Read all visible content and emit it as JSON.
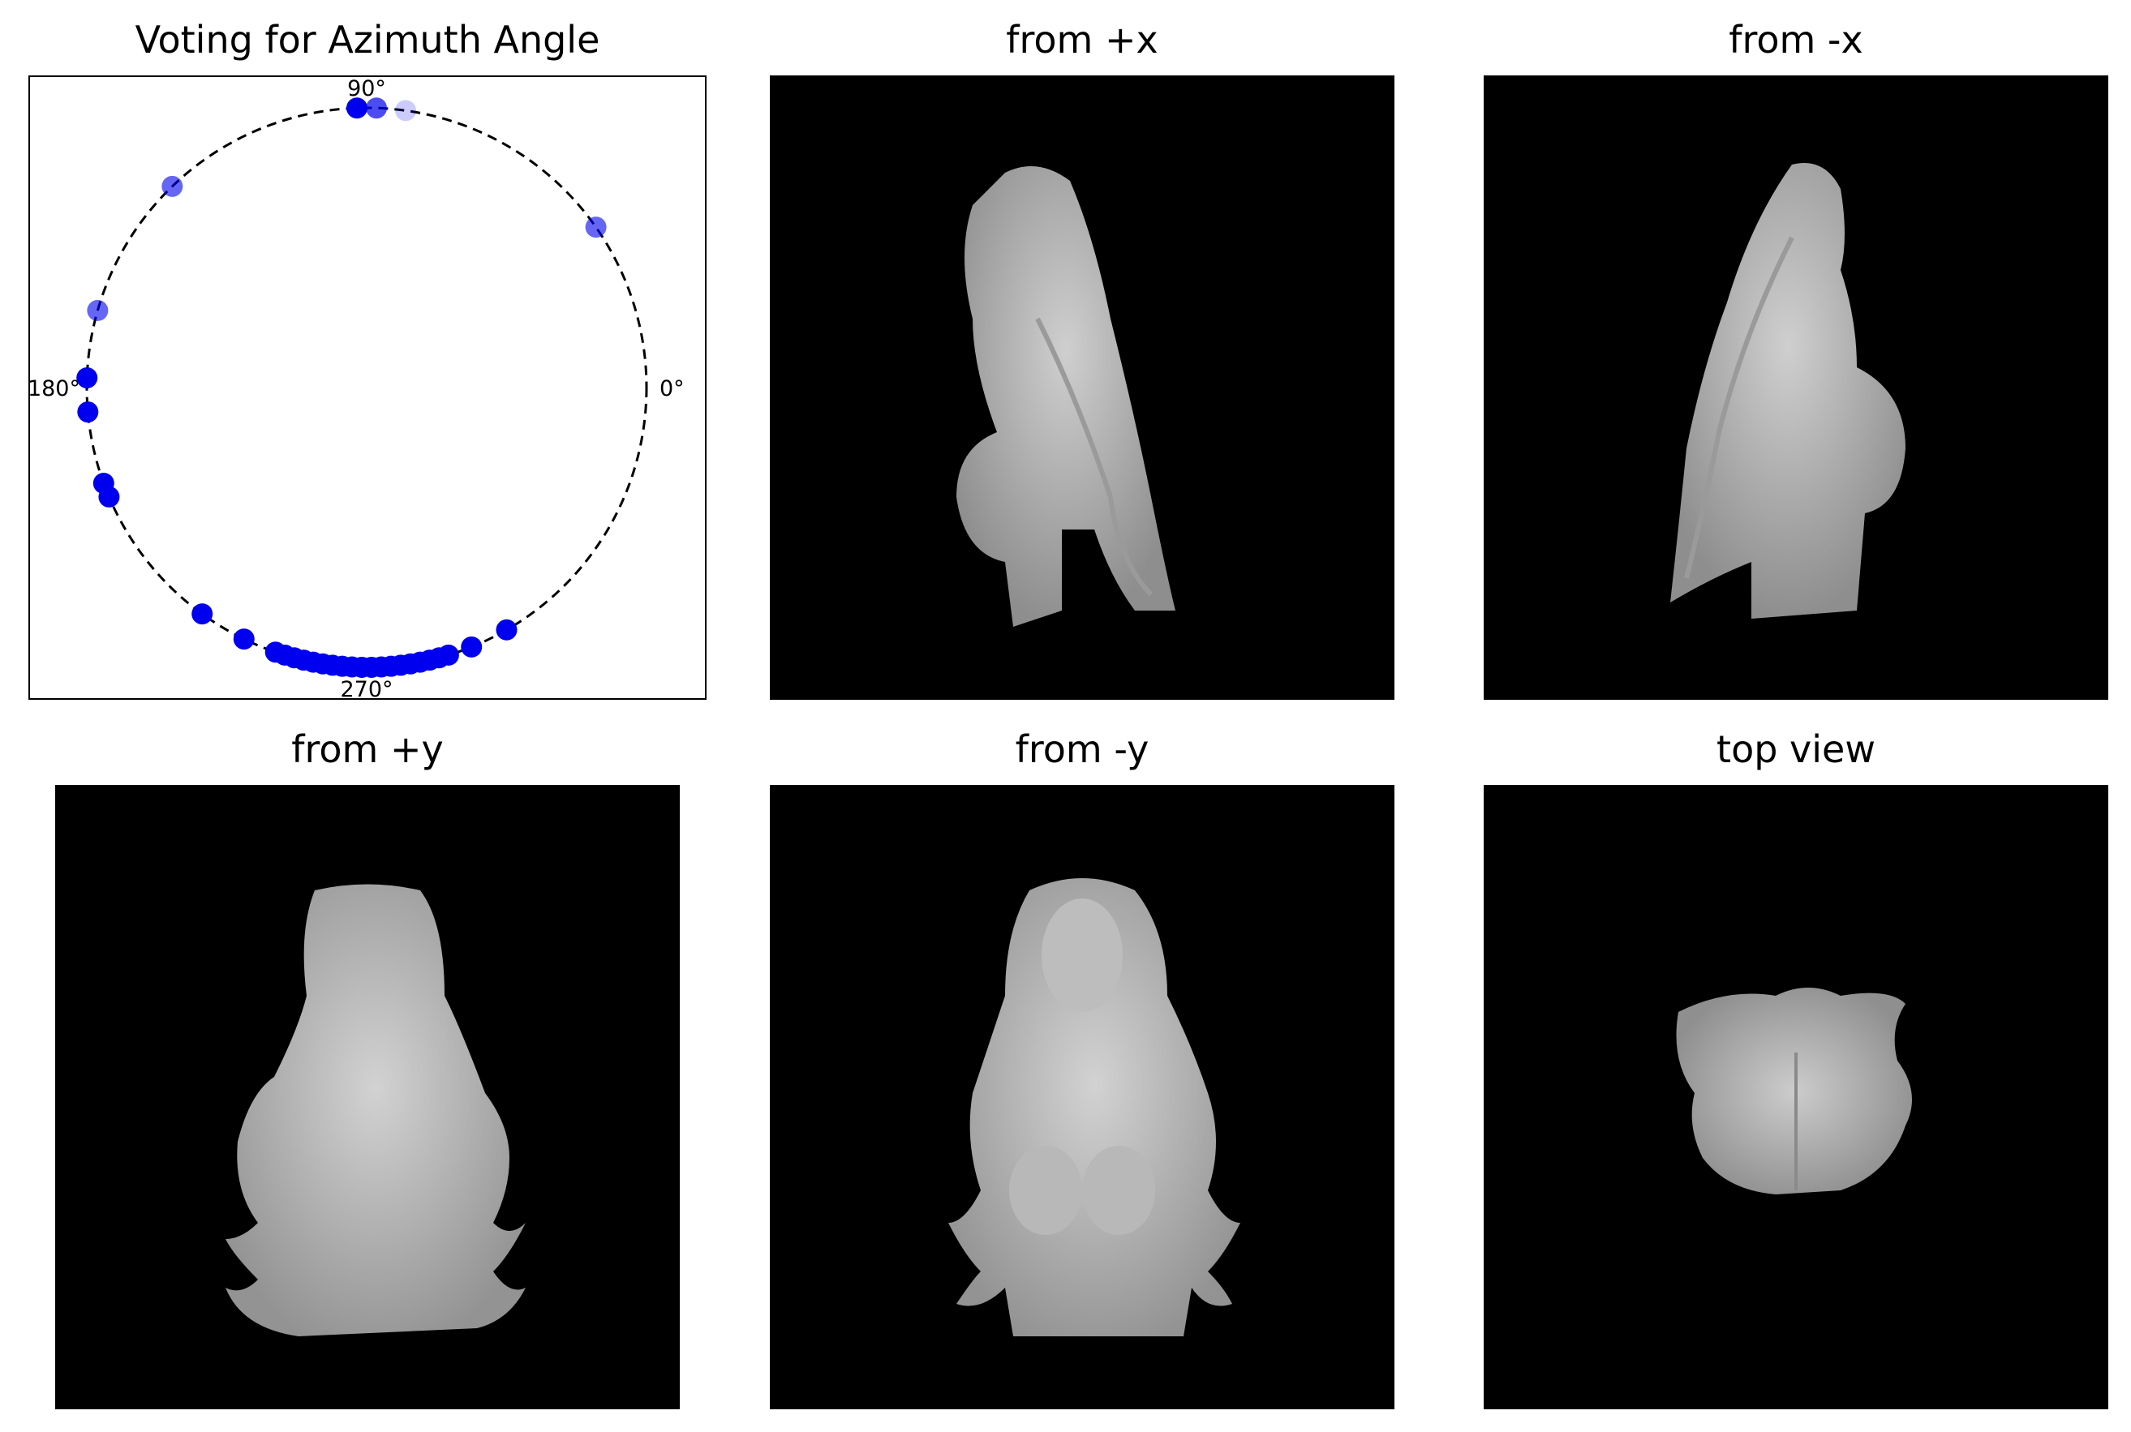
{
  "chart_data": {
    "type": "scatter",
    "projection": "polar",
    "title": "Voting for Azimuth Angle",
    "angle_labels": [
      "0°",
      "90°",
      "180°",
      "270°"
    ],
    "marker_color": "#0000ee",
    "angles_deg": [
      82,
      88,
      92,
      134,
      35,
      164,
      178,
      185,
      200,
      203,
      234,
      244,
      251,
      253,
      255,
      257,
      259,
      261,
      263,
      265,
      267,
      269,
      271,
      273,
      275,
      277,
      279,
      281,
      283,
      285,
      287,
      292,
      300
    ],
    "alphas": [
      0.2,
      0.7,
      1,
      0.6,
      0.6,
      0.6,
      1,
      1,
      1,
      1,
      1,
      1,
      1,
      1,
      1,
      1,
      1,
      1,
      1,
      1,
      1,
      1,
      1,
      1,
      1,
      1,
      1,
      1,
      1,
      1,
      1,
      1,
      1
    ],
    "radius": 1.0
  },
  "panels": [
    {
      "title": "from +x"
    },
    {
      "title": "from -x"
    },
    {
      "title": "from +y"
    },
    {
      "title": "from -y"
    },
    {
      "title": "top view"
    }
  ]
}
